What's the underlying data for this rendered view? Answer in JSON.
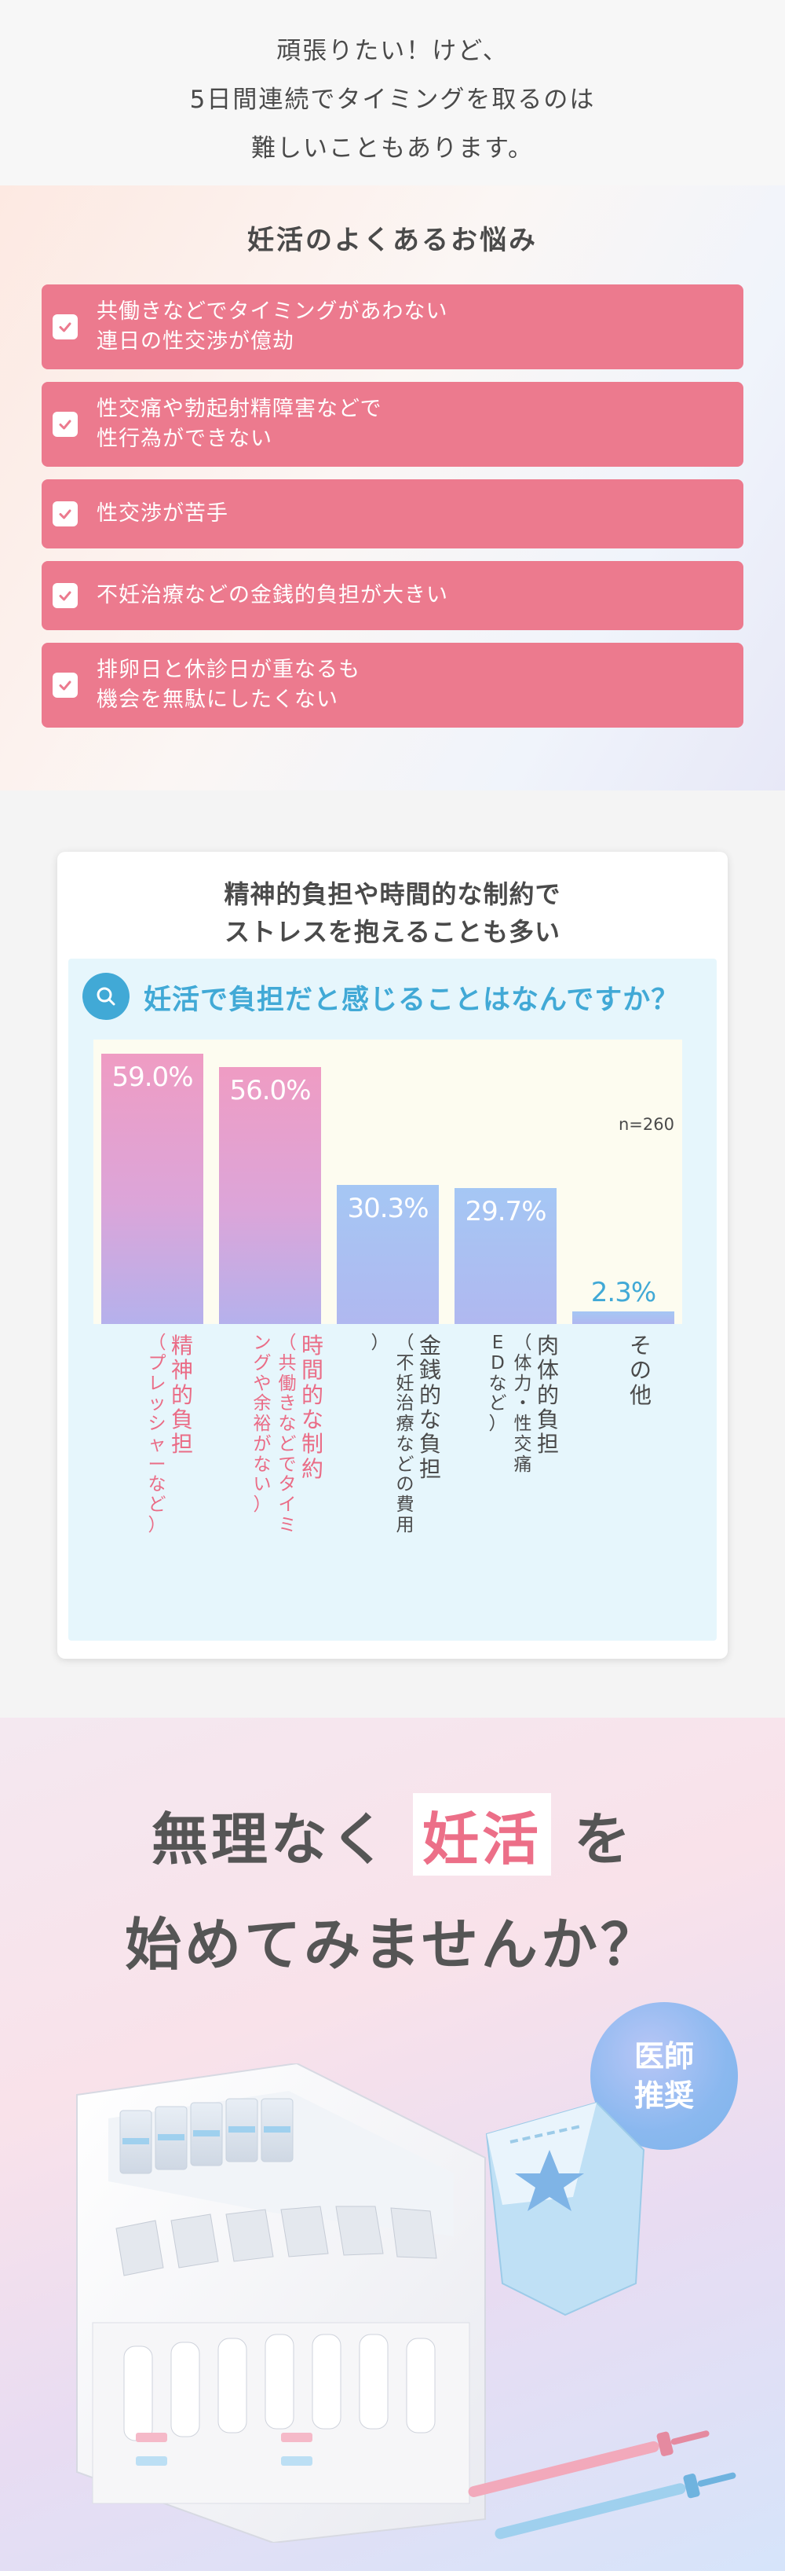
{
  "intro": {
    "lines": [
      "頑張りたい！けど、",
      "5日間連続でタイミングを取るのは",
      "難しいこともあります。"
    ]
  },
  "worries": {
    "title": "妊活のよくあるお悩み",
    "items": [
      {
        "lines": [
          "共働きなどでタイミングがあわない",
          "連日の性交渉が億劫"
        ]
      },
      {
        "lines": [
          "性交痛や勃起射精障害などで",
          "性行為ができない"
        ]
      },
      {
        "lines": [
          "性交渉が苦手"
        ]
      },
      {
        "lines": [
          "不妊治療などの金銭的負担が大きい"
        ]
      },
      {
        "lines": [
          "排卵日と休診日が重なるも",
          "機会を無駄にしたくない"
        ]
      }
    ],
    "check_icon": "check-icon"
  },
  "survey": {
    "title_lines": [
      "精神的負担や時間的な制約で",
      "ストレスを抱えることも多い"
    ],
    "question": "妊活で負担だと感じることはなんですか？",
    "question_icon": "search-icon",
    "n_label": "n=260",
    "colors": {
      "pink": "#ea6c86",
      "blue": "#41a9d6"
    }
  },
  "chart_data": {
    "type": "bar",
    "ylim": [
      0,
      62
    ],
    "n": 260,
    "categories": [
      {
        "label": "精神的負担",
        "sub": "（プレッシャーなど）",
        "value": 59.0,
        "value_label": "59.0%",
        "color": "pink"
      },
      {
        "label": "時間的な制約",
        "sub": "（共働きなどでタイミングや余裕がない）",
        "value": 56.0,
        "value_label": "56.0%",
        "color": "pink"
      },
      {
        "label": "金銭的な負担",
        "sub": "（不妊治療などの費用）",
        "value": 30.3,
        "value_label": "30.3%",
        "color": "blue"
      },
      {
        "label": "肉体的負担",
        "sub": "（体力・性交痛 EDなど）",
        "value": 29.7,
        "value_label": "29.7%",
        "color": "blue"
      },
      {
        "label": "その他",
        "sub": "",
        "value": 2.3,
        "value_label": "2.3%",
        "color": "blue"
      }
    ]
  },
  "promo": {
    "line1_before": "無理なく",
    "line1_highlight": "妊活",
    "line1_after": "を",
    "line2": "始めてみませんか？",
    "badge_lines": [
      "医師",
      "推奨"
    ]
  }
}
